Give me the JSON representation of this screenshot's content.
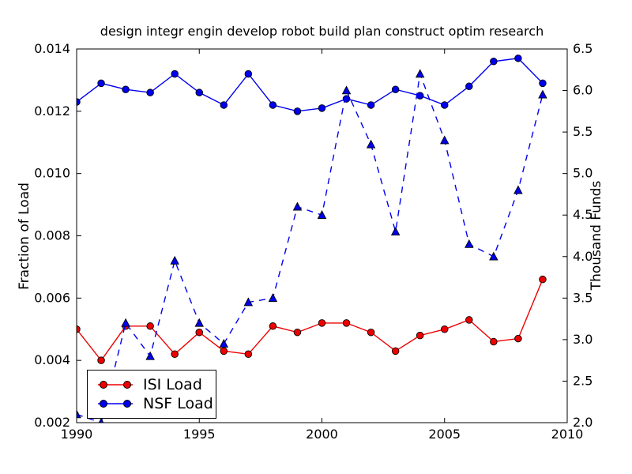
{
  "title": "design integr engin develop robot build plan construct optim research",
  "axes": {
    "x": {
      "range": [
        1990,
        2010
      ],
      "tick_values": [
        1990,
        1995,
        2000,
        2005,
        2010
      ],
      "tick_labels": [
        "1990",
        "1995",
        "2000",
        "2005",
        "2010"
      ]
    },
    "y_left": {
      "label": "Fraction of Load",
      "range": [
        0.002,
        0.014
      ],
      "tick_values": [
        0.002,
        0.004,
        0.006,
        0.008,
        0.01,
        0.012,
        0.014
      ],
      "tick_labels": [
        "0.002",
        "0.004",
        "0.006",
        "0.008",
        "0.010",
        "0.012",
        "0.014"
      ]
    },
    "y_right": {
      "label": "Thousand Funds",
      "range": [
        2.0,
        6.5
      ],
      "tick_values": [
        2.0,
        2.5,
        3.0,
        3.5,
        4.0,
        4.5,
        5.0,
        5.5,
        6.0,
        6.5
      ],
      "tick_labels": [
        "2.0",
        "2.5",
        "3.0",
        "3.5",
        "4.0",
        "4.5",
        "5.0",
        "5.5",
        "6.0",
        "6.5"
      ]
    }
  },
  "legend": {
    "position": "lower left",
    "items": [
      {
        "label": "ISI Load",
        "color": "#ee0000",
        "marker": "circle",
        "line": "solid"
      },
      {
        "label": "NSF Load",
        "color": "#0000ee",
        "marker": "circle",
        "line": "solid"
      }
    ]
  },
  "chart_data": {
    "type": "line",
    "title": "design integr engin develop robot build plan construct optim research",
    "xlabel": "",
    "ylabel_left": "Fraction of Load",
    "ylabel_right": "Thousand Funds",
    "xlim": [
      1990,
      2010
    ],
    "ylim_left": [
      0.002,
      0.014
    ],
    "ylim_right": [
      2.0,
      6.5
    ],
    "grid": false,
    "legend_position": "lower left",
    "x": [
      1990,
      1991,
      1992,
      1993,
      1994,
      1995,
      1996,
      1997,
      1998,
      1999,
      2000,
      2001,
      2002,
      2003,
      2004,
      2005,
      2006,
      2007,
      2008,
      2009
    ],
    "series": [
      {
        "name": "ISI Load",
        "axis": "left",
        "color": "#ee0000",
        "line": "solid",
        "marker": "circle",
        "values": [
          0.005,
          0.004,
          0.0051,
          0.0051,
          0.0042,
          0.0049,
          0.0043,
          0.0042,
          0.0051,
          0.0049,
          0.0052,
          0.0052,
          0.0049,
          0.0043,
          0.0048,
          0.005,
          0.0053,
          0.0046,
          0.0047,
          0.0066
        ]
      },
      {
        "name": "NSF Load",
        "axis": "left",
        "color": "#0000ee",
        "line": "solid",
        "marker": "circle",
        "values": [
          0.0123,
          0.0129,
          0.0127,
          0.0126,
          0.0132,
          0.0126,
          0.0122,
          0.0132,
          0.0122,
          0.012,
          0.0121,
          0.0124,
          0.0122,
          0.0127,
          0.0125,
          0.0122,
          0.0128,
          0.0136,
          0.0137,
          0.0129
        ]
      },
      {
        "name": "Thousand Funds (dashed, no legend entry)",
        "axis": "right",
        "color": "#0000ee",
        "line": "dashed",
        "marker": "triangle",
        "values": [
          2.1,
          2.0,
          3.2,
          2.8,
          3.95,
          3.2,
          2.95,
          3.45,
          3.5,
          4.6,
          4.5,
          6.0,
          5.35,
          4.3,
          6.2,
          5.4,
          4.15,
          4.0,
          4.8,
          5.95
        ]
      }
    ]
  }
}
